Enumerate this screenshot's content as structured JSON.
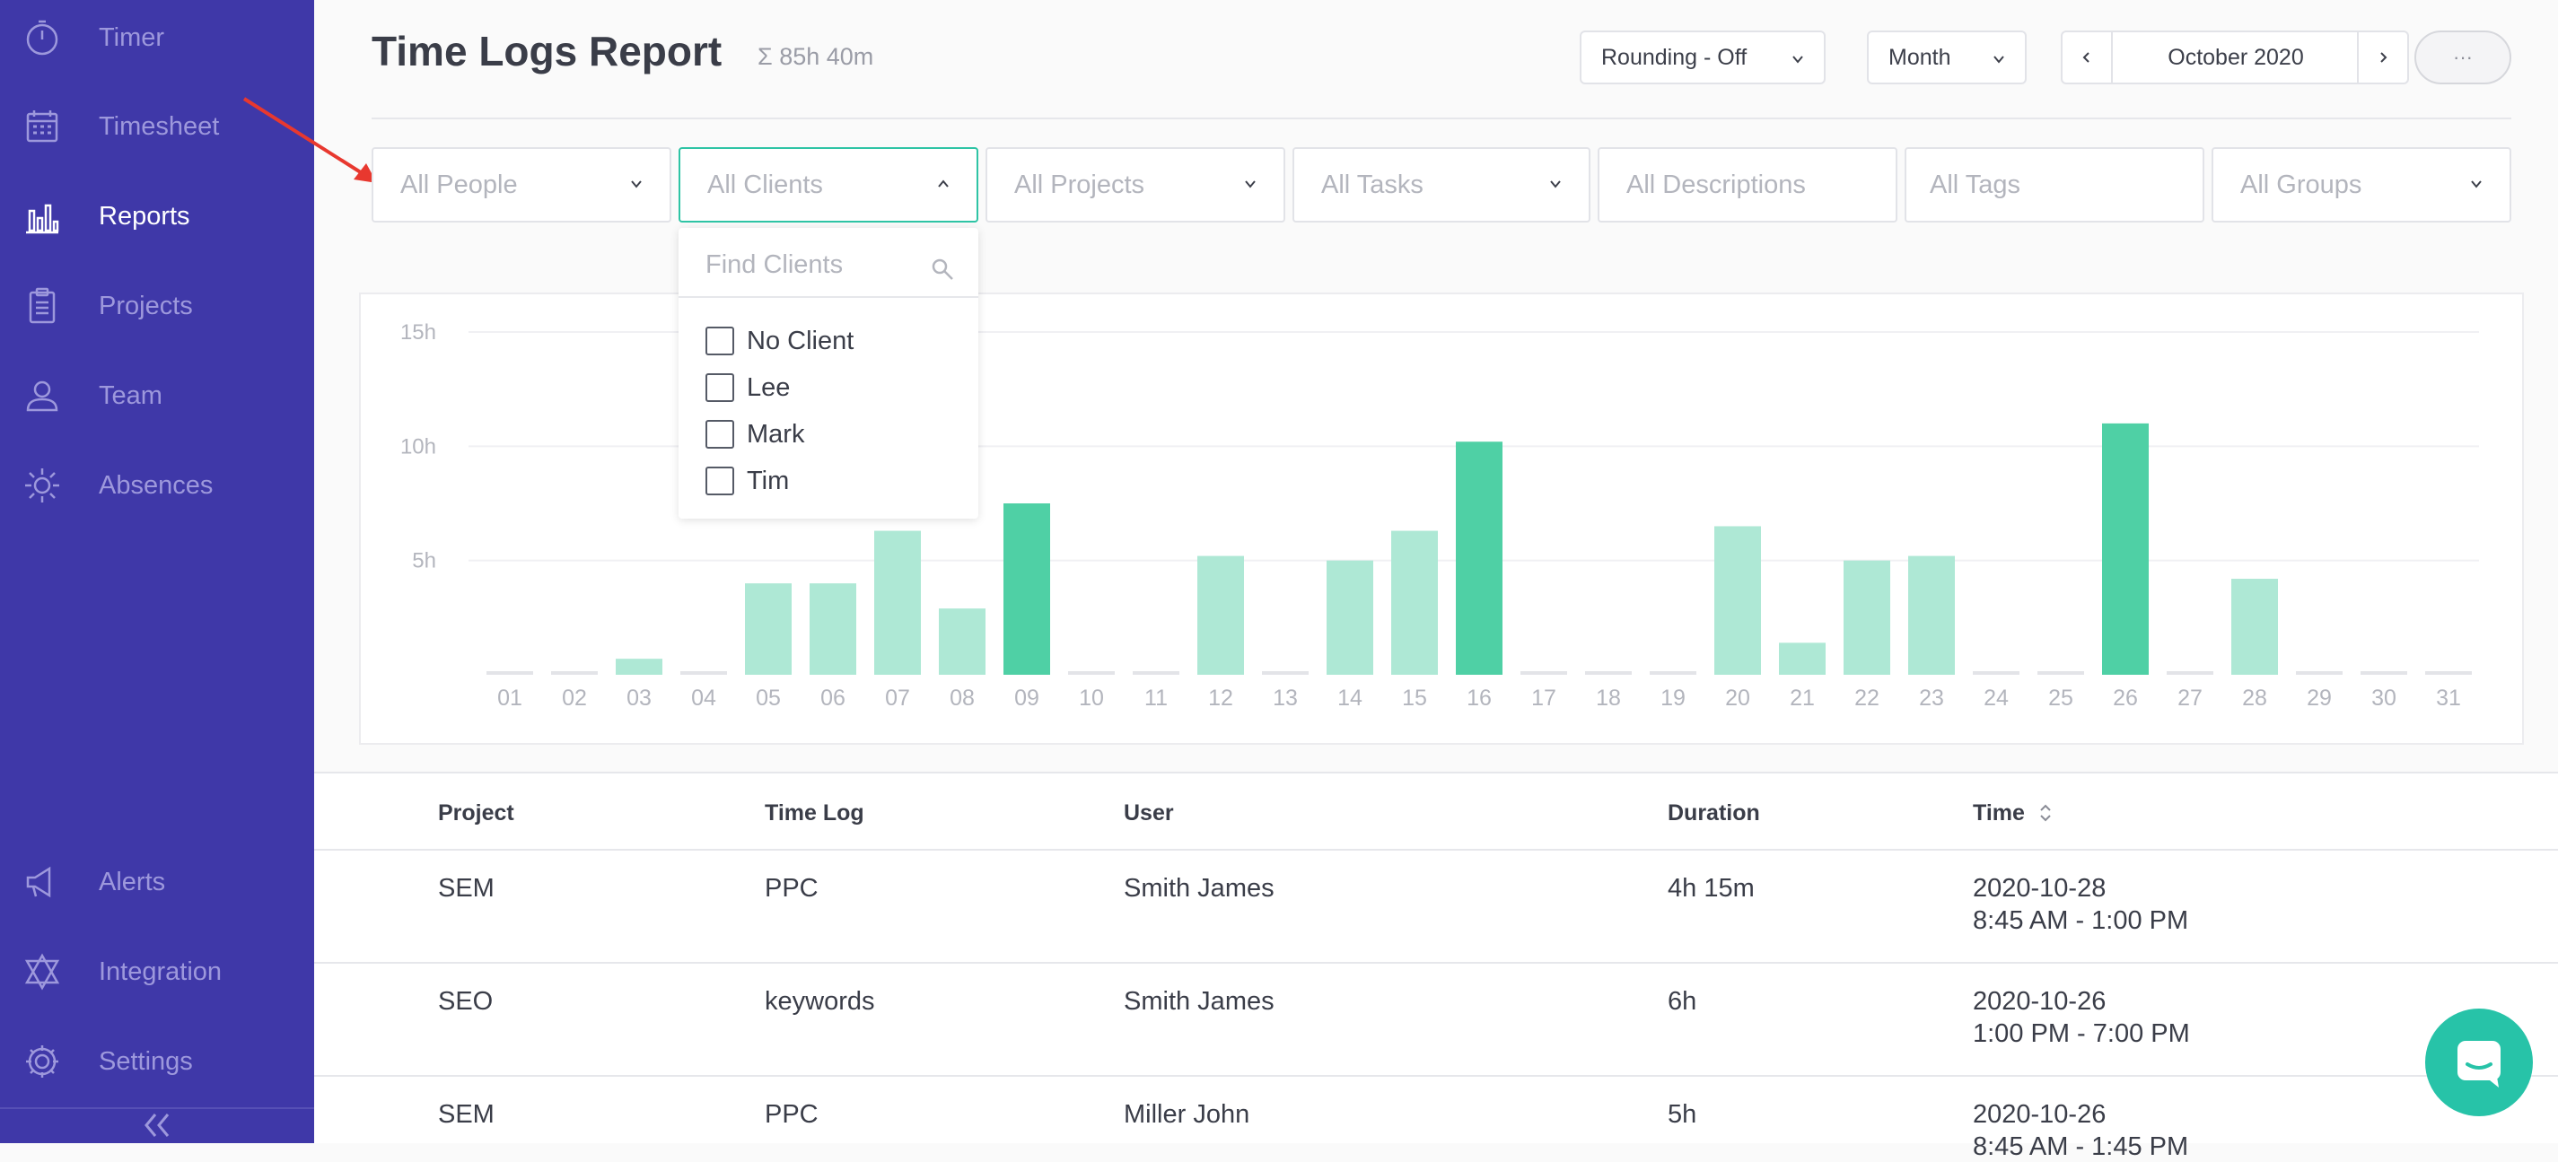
{
  "sidebar": {
    "items": [
      {
        "label": "Timer",
        "icon": "stopwatch-icon"
      },
      {
        "label": "Timesheet",
        "icon": "calendar-icon"
      },
      {
        "label": "Reports",
        "icon": "bar-chart-icon",
        "active": true
      },
      {
        "label": "Projects",
        "icon": "clipboard-icon"
      },
      {
        "label": "Team",
        "icon": "person-icon"
      },
      {
        "label": "Absences",
        "icon": "sun-icon"
      }
    ],
    "bottom_items": [
      {
        "label": "Alerts",
        "icon": "megaphone-icon"
      },
      {
        "label": "Integration",
        "icon": "integration-icon"
      },
      {
        "label": "Settings",
        "icon": "gear-icon"
      }
    ],
    "collapse_icon": "double-chevron-left-icon",
    "colors": {
      "background": "#3f38a8",
      "text": "#9d98dc",
      "active_text": "#ffffff"
    }
  },
  "header": {
    "title": "Time Logs Report",
    "total": "Σ 85h 40m",
    "rounding": "Rounding - Off",
    "period": "Month",
    "date_range": "October 2020",
    "more": "···"
  },
  "filters": {
    "people": "All People",
    "clients": "All Clients",
    "projects": "All Projects",
    "tasks": "All Tasks",
    "descriptions": "All Descriptions",
    "tags": "All Tags",
    "groups": "All Groups"
  },
  "client_dropdown": {
    "search_placeholder": "Find Clients",
    "options": [
      "No Client",
      "Lee",
      "Mark",
      "Tim"
    ]
  },
  "chart_data": {
    "type": "bar",
    "categories": [
      "01",
      "02",
      "03",
      "04",
      "05",
      "06",
      "07",
      "08",
      "09",
      "10",
      "11",
      "12",
      "13",
      "14",
      "15",
      "16",
      "17",
      "18",
      "19",
      "20",
      "21",
      "22",
      "23",
      "24",
      "25",
      "26",
      "27",
      "28",
      "29",
      "30",
      "31"
    ],
    "values": [
      0,
      0,
      0.7,
      0,
      4,
      4,
      6.3,
      2.9,
      7.5,
      0,
      0,
      5.2,
      0,
      5,
      6.3,
      10.2,
      0,
      0,
      0,
      6.5,
      1.4,
      5,
      5.2,
      0,
      0,
      11,
      0,
      4.2,
      0,
      0,
      0
    ],
    "yticks": [
      "5h",
      "10h",
      "15h"
    ],
    "ylim": [
      0,
      15
    ],
    "highlighted": [
      "09",
      "16",
      "26"
    ],
    "colors": {
      "bar": "#aee8d5",
      "highlight": "#4fd0a5",
      "zero": "#e3e4e8"
    }
  },
  "table": {
    "headers": {
      "project": "Project",
      "time_log": "Time Log",
      "user": "User",
      "duration": "Duration",
      "time": "Time"
    },
    "rows": [
      {
        "project": "SEM",
        "time_log": "PPC",
        "user": "Smith James",
        "duration": "4h 15m",
        "date": "2020-10-28",
        "time": "8:45 AM - 1:00 PM"
      },
      {
        "project": "SEO",
        "time_log": "keywords",
        "user": "Smith James",
        "duration": "6h",
        "date": "2020-10-26",
        "time": "1:00 PM - 7:00 PM"
      },
      {
        "project": "SEM",
        "time_log": "PPC",
        "user": "Miller John",
        "duration": "5h",
        "date": "2020-10-26",
        "time": "8:45 AM - 1:45 PM"
      }
    ]
  },
  "colors": {
    "accent": "#2ec4a5",
    "annotation_arrow": "#e8382f"
  }
}
